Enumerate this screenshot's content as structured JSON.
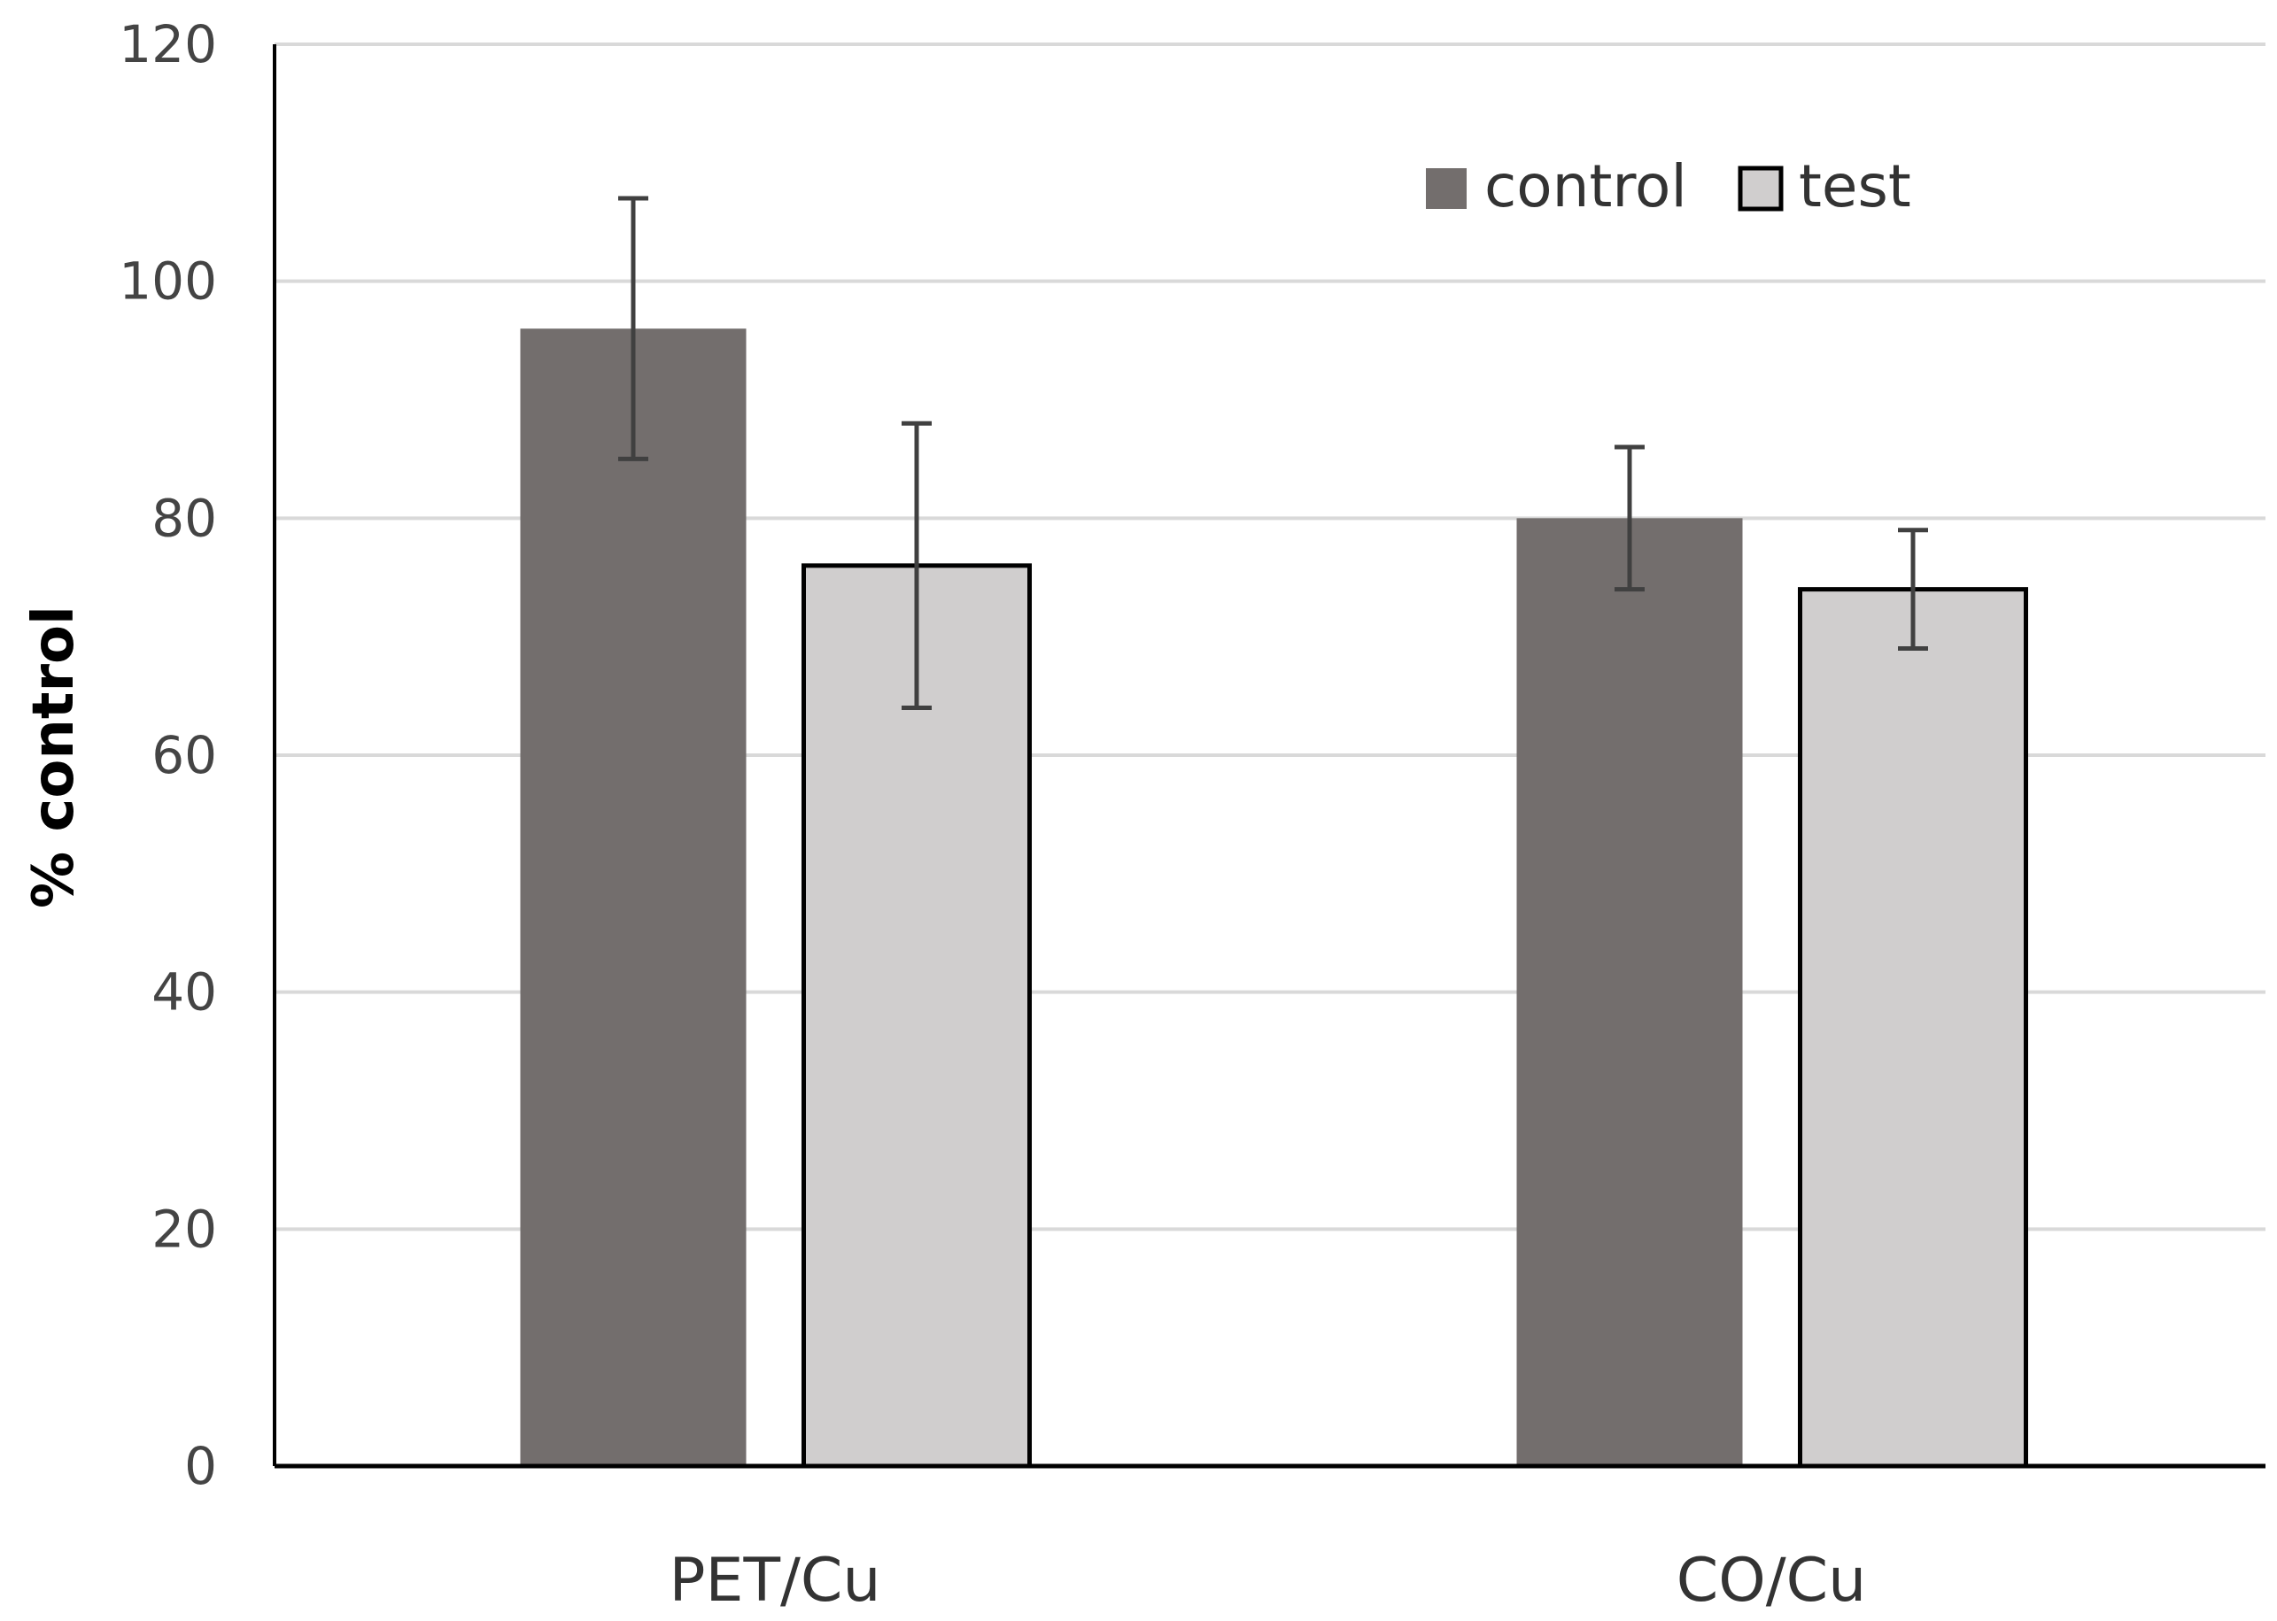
{
  "chart_data": {
    "type": "bar",
    "title": "",
    "xlabel": "",
    "ylabel": "% control",
    "ylim": [
      0,
      120
    ],
    "yticks": [
      0,
      20,
      40,
      60,
      80,
      100,
      120
    ],
    "ytick_labels": [
      "0",
      "20",
      "40",
      "60",
      "80",
      "100",
      "120"
    ],
    "grid": true,
    "legend": "top-right",
    "categories": [
      "PET/Cu",
      "CO/Cu"
    ],
    "series": [
      {
        "name": "control",
        "values": [
          96,
          80
        ],
        "error_low": [
          85,
          74
        ],
        "error_high": [
          107,
          86
        ],
        "color": "#736e6d",
        "stroke": "none"
      },
      {
        "name": "test",
        "values": [
          76,
          74
        ],
        "error_low": [
          64,
          69
        ],
        "error_high": [
          88,
          79
        ],
        "color": "#d0cece",
        "stroke": "#000000"
      }
    ],
    "colors": {
      "grid": "#d9d9d9",
      "axis": "#000000",
      "errorbar": "#404040"
    }
  }
}
